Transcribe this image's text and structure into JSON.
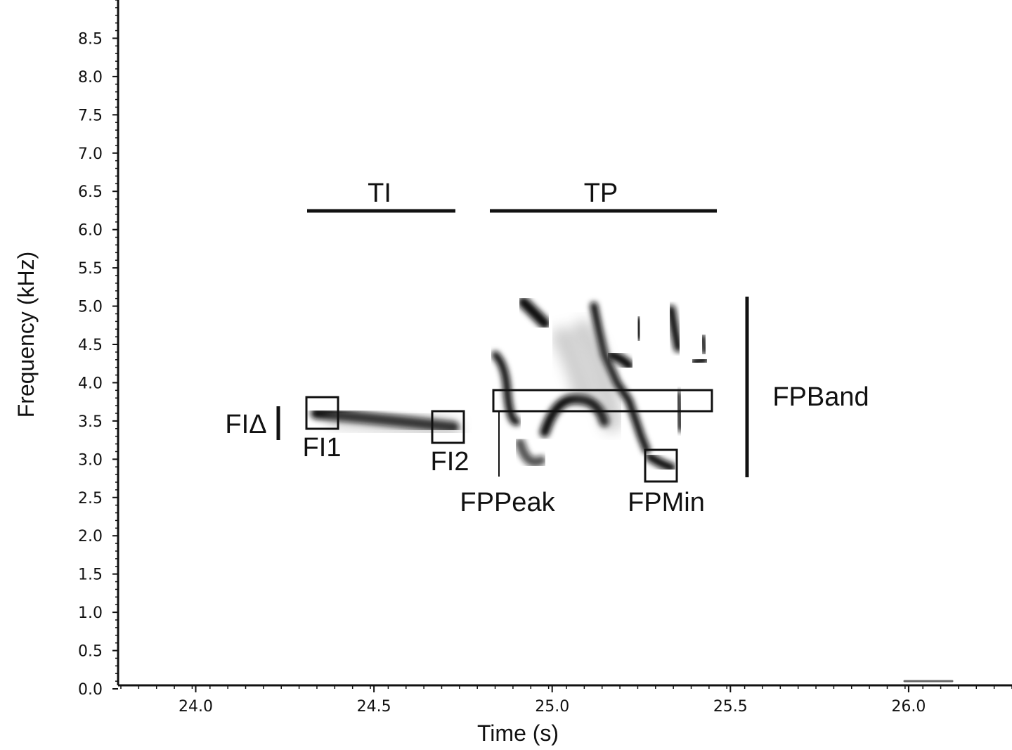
{
  "chart_data": {
    "type": "spectrogram",
    "xlabel": "Time (s)",
    "ylabel": "Frequency (kHz)",
    "xlim": [
      23.79,
      26.29
    ],
    "xticks": [
      {
        "value": 24,
        "label": "24.0"
      },
      24.5,
      {
        "value": 25,
        "label": "25.0"
      },
      25.5,
      {
        "value": 26,
        "label": "26.0"
      }
    ],
    "ylim": [
      0,
      9
    ],
    "yticks": [
      {
        "value": 0,
        "label": "0.0"
      },
      0.5,
      {
        "value": 1,
        "label": "1.0"
      },
      1.5,
      {
        "value": 2,
        "label": "2.0"
      },
      2.5,
      {
        "value": 3,
        "label": "3.0"
      },
      3.5,
      {
        "value": 4,
        "label": "4.0"
      },
      4.5,
      {
        "value": 5,
        "label": "5.0"
      },
      5.5,
      {
        "value": 6,
        "label": "6.0"
      },
      6.5,
      {
        "value": 7,
        "label": "7.0"
      },
      7.5,
      {
        "value": 8,
        "label": "8.0"
      },
      8.5
    ],
    "annotations": [
      "TI",
      "TP",
      "FIΔ",
      "FI1",
      "FI2",
      "FPPeak",
      "FPMin",
      "FPBand"
    ]
  }
}
